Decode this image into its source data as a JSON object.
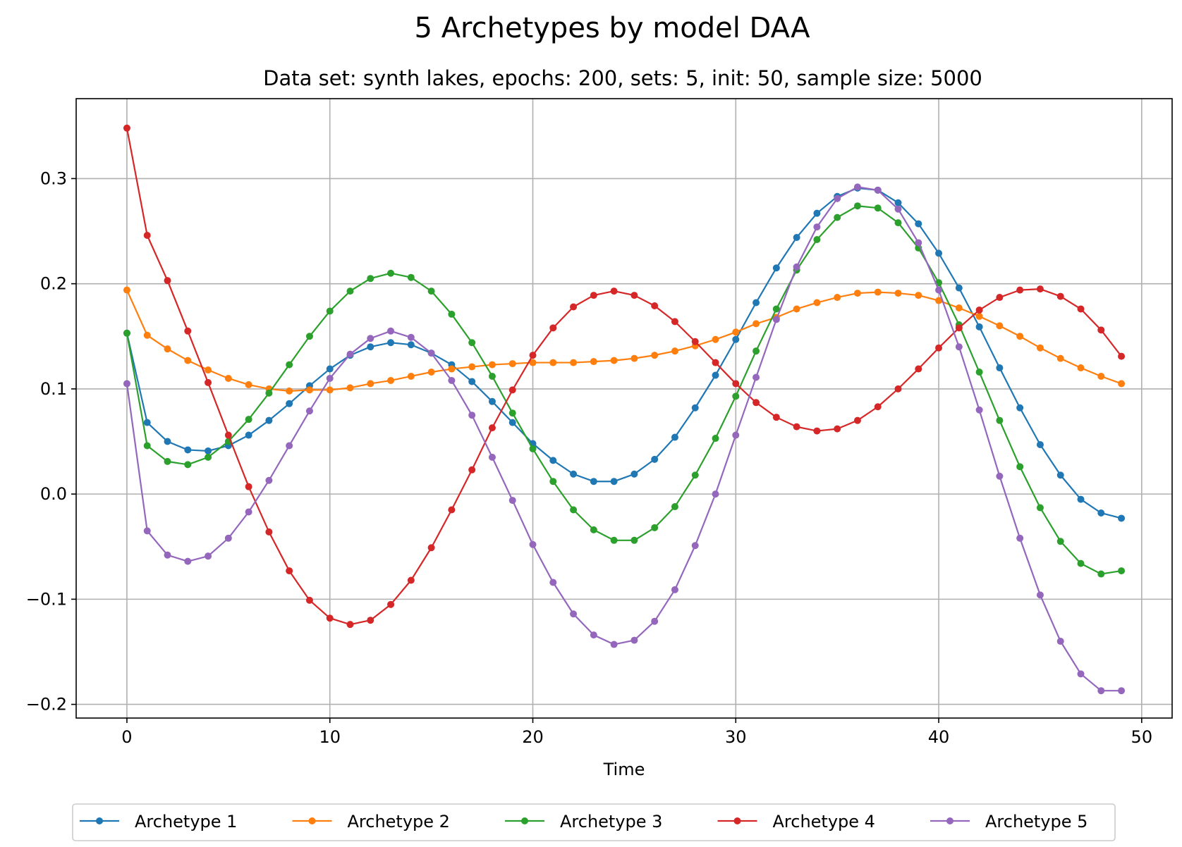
{
  "chart_data": {
    "type": "line",
    "title": "5 Archetypes by model DAA",
    "subtitle": "Data set: synth lakes, epochs: 200, sets: 5, init: 50, sample size: 5000",
    "xlabel": "Time",
    "ylabel": "",
    "xlim": [
      -2.5,
      51.5
    ],
    "ylim": [
      -0.213,
      0.376
    ],
    "xticks": [
      0,
      10,
      20,
      30,
      40,
      50
    ],
    "xtick_labels": [
      "0",
      "10",
      "20",
      "30",
      "40",
      "50"
    ],
    "yticks": [
      -0.2,
      -0.1,
      0.0,
      0.1,
      0.2,
      0.3
    ],
    "ytick_labels": [
      "−0.2",
      "−0.1",
      "0.0",
      "0.1",
      "0.2",
      "0.3"
    ],
    "grid": true,
    "legend_position": "bottom-center",
    "x": [
      0,
      1,
      2,
      3,
      4,
      5,
      6,
      7,
      8,
      9,
      10,
      11,
      12,
      13,
      14,
      15,
      16,
      17,
      18,
      19,
      20,
      21,
      22,
      23,
      24,
      25,
      26,
      27,
      28,
      29,
      30,
      31,
      32,
      33,
      34,
      35,
      36,
      37,
      38,
      39,
      40,
      41,
      42,
      43,
      44,
      45,
      46,
      47,
      48,
      49
    ],
    "series": [
      {
        "name": "Archetype 1",
        "color": "#1f77b4",
        "values": [
          0.153,
          0.068,
          0.05,
          0.042,
          0.041,
          0.046,
          0.056,
          0.07,
          0.086,
          0.103,
          0.119,
          0.132,
          0.14,
          0.144,
          0.142,
          0.134,
          0.123,
          0.107,
          0.088,
          0.068,
          0.048,
          0.032,
          0.019,
          0.012,
          0.012,
          0.019,
          0.033,
          0.054,
          0.082,
          0.113,
          0.147,
          0.182,
          0.215,
          0.244,
          0.267,
          0.283,
          0.291,
          0.289,
          0.277,
          0.257,
          0.229,
          0.196,
          0.159,
          0.12,
          0.082,
          0.047,
          0.018,
          -0.005,
          -0.018,
          -0.023
        ]
      },
      {
        "name": "Archetype 2",
        "color": "#ff7f0e",
        "values": [
          0.194,
          0.151,
          0.138,
          0.127,
          0.118,
          0.11,
          0.104,
          0.1,
          0.098,
          0.099,
          0.099,
          0.101,
          0.105,
          0.108,
          0.112,
          0.116,
          0.119,
          0.121,
          0.123,
          0.124,
          0.125,
          0.125,
          0.125,
          0.126,
          0.127,
          0.129,
          0.132,
          0.136,
          0.141,
          0.147,
          0.154,
          0.162,
          0.168,
          0.176,
          0.182,
          0.187,
          0.191,
          0.192,
          0.191,
          0.189,
          0.184,
          0.177,
          0.169,
          0.16,
          0.15,
          0.139,
          0.129,
          0.12,
          0.112,
          0.105
        ]
      },
      {
        "name": "Archetype 3",
        "color": "#2ca02c",
        "values": [
          0.153,
          0.046,
          0.031,
          0.028,
          0.035,
          0.05,
          0.071,
          0.096,
          0.123,
          0.15,
          0.174,
          0.193,
          0.205,
          0.21,
          0.206,
          0.193,
          0.171,
          0.144,
          0.112,
          0.077,
          0.043,
          0.012,
          -0.015,
          -0.034,
          -0.044,
          -0.044,
          -0.032,
          -0.012,
          0.018,
          0.053,
          0.093,
          0.136,
          0.176,
          0.213,
          0.242,
          0.263,
          0.274,
          0.272,
          0.258,
          0.234,
          0.201,
          0.161,
          0.116,
          0.07,
          0.026,
          -0.013,
          -0.045,
          -0.066,
          -0.076,
          -0.073
        ]
      },
      {
        "name": "Archetype 4",
        "color": "#d62728",
        "values": [
          0.348,
          0.246,
          0.203,
          0.155,
          0.106,
          0.056,
          0.007,
          -0.036,
          -0.073,
          -0.101,
          -0.118,
          -0.124,
          -0.12,
          -0.105,
          -0.082,
          -0.051,
          -0.015,
          0.023,
          0.063,
          0.099,
          0.132,
          0.158,
          0.178,
          0.189,
          0.193,
          0.189,
          0.179,
          0.164,
          0.145,
          0.125,
          0.105,
          0.087,
          0.073,
          0.064,
          0.06,
          0.062,
          0.07,
          0.083,
          0.1,
          0.119,
          0.139,
          0.158,
          0.175,
          0.187,
          0.194,
          0.195,
          0.188,
          0.176,
          0.156,
          0.131
        ]
      },
      {
        "name": "Archetype 5",
        "color": "#9467bd",
        "values": [
          0.105,
          -0.035,
          -0.058,
          -0.064,
          -0.059,
          -0.042,
          -0.017,
          0.013,
          0.046,
          0.079,
          0.11,
          0.133,
          0.148,
          0.155,
          0.149,
          0.134,
          0.108,
          0.075,
          0.035,
          -0.006,
          -0.048,
          -0.084,
          -0.114,
          -0.134,
          -0.143,
          -0.139,
          -0.121,
          -0.091,
          -0.049,
          0.0,
          0.056,
          0.111,
          0.166,
          0.216,
          0.254,
          0.281,
          0.292,
          0.289,
          0.271,
          0.239,
          0.194,
          0.14,
          0.08,
          0.017,
          -0.042,
          -0.096,
          -0.14,
          -0.171,
          -0.187,
          -0.187
        ]
      }
    ]
  }
}
